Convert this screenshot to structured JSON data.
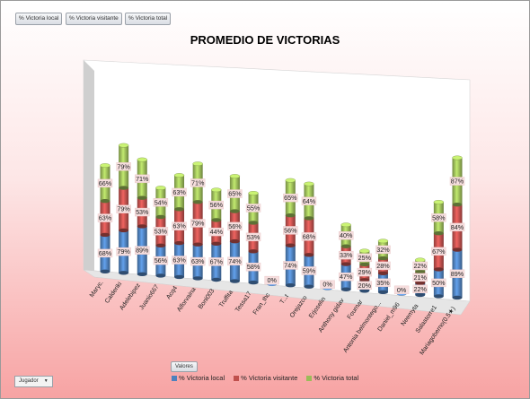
{
  "filters": [
    {
      "label": "% Victoria local"
    },
    {
      "label": "% Victoria visitante"
    },
    {
      "label": "% Victoria total"
    }
  ],
  "valores_button": "Valores",
  "row_field": {
    "label": "Jugador",
    "arrow": "▼"
  },
  "colors": {
    "local": "#4f81bd",
    "visitante": "#c0504d",
    "total": "#9bbb59"
  },
  "chart_data": {
    "type": "bar",
    "stacked": true,
    "three_d": true,
    "title": "PROMEDIO DE VICTORIAS",
    "legend_position": "bottom",
    "categories": [
      "Maryc.",
      "Calderiki",
      "Adelebipez",
      "Juanio667",
      "Acq4",
      "Alforvaina",
      "Boni003",
      "Truffita",
      "Tessa17",
      "Fran_thc",
      "T...t",
      "Orejazco",
      "Erjoselin",
      "Anthony gidav",
      "Fournar",
      "Antonia belmontego...",
      "Daniel_m96",
      "Neemyta",
      "Salastorre1",
      "Mariagoberno(0.5★)"
    ],
    "series": [
      {
        "name": "% Victoria local",
        "key": "local",
        "values": [
          68,
          79,
          89,
          56,
          63,
          63,
          67,
          74,
          58,
          0,
          74,
          59,
          0,
          47,
          20,
          35,
          0,
          22,
          50,
          89
        ]
      },
      {
        "name": "% Victoria visitante",
        "key": "visitante",
        "values": [
          63,
          79,
          53,
          53,
          63,
          79,
          44,
          56,
          53,
          null,
          56,
          68,
          null,
          33,
          29,
          28,
          null,
          21,
          67,
          84
        ]
      },
      {
        "name": "% Victoria total",
        "key": "total",
        "values": [
          66,
          79,
          71,
          54,
          63,
          71,
          56,
          65,
          55,
          null,
          65,
          64,
          null,
          40,
          25,
          32,
          null,
          22,
          58,
          87
        ]
      }
    ]
  }
}
